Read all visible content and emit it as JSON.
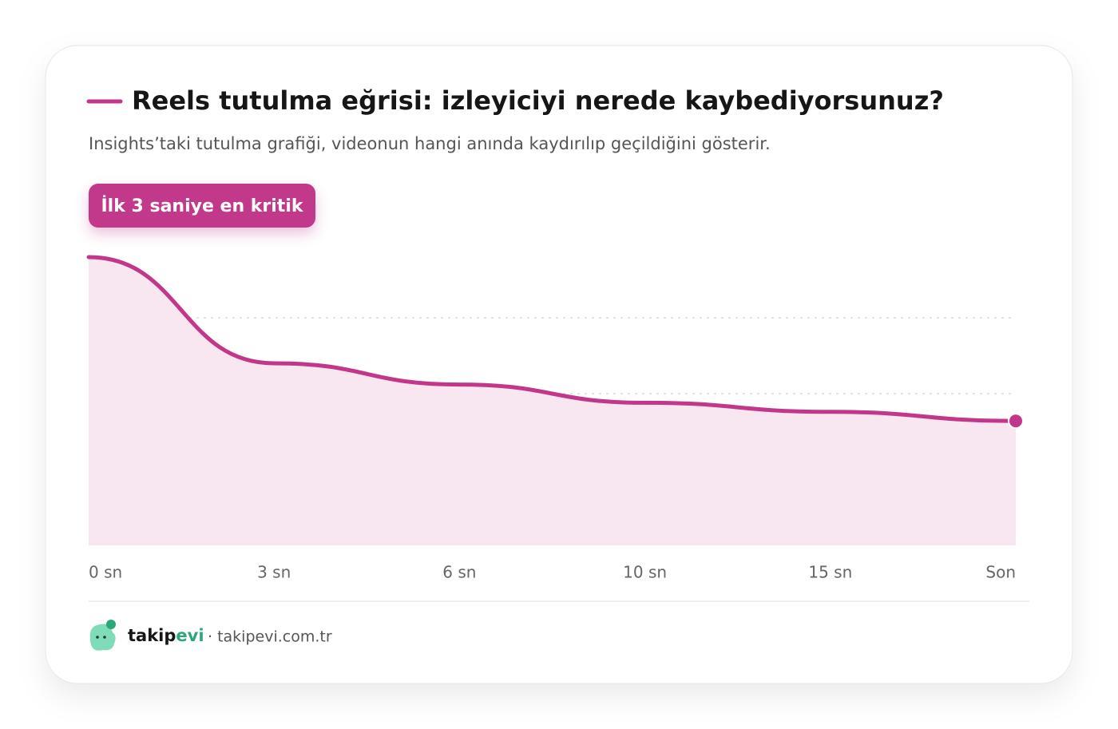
{
  "chart_data": {
    "type": "area",
    "title": "Reels tutulma eğrisi: izleyiciyi nerede kaybediyorsunuz?",
    "subtitle": "Insights’taki tutulma grafiği, videonun hangi anında kaydırılıp geçildiğini gösterir.",
    "annotation": "İlk 3 saniye en kritik",
    "categories": [
      "0 sn",
      "3 sn",
      "6 sn",
      "10 sn",
      "15 sn",
      "Son"
    ],
    "values": [
      95,
      60,
      53,
      47,
      44,
      41
    ],
    "color": "#c2378a",
    "fill": "#f8e6f1",
    "ylim": [
      0,
      100
    ],
    "grid_lines": [
      25,
      50,
      75
    ],
    "footer": {
      "brand": [
        "takip",
        "evi"
      ],
      "site": "· takipevi.com.tr"
    }
  }
}
